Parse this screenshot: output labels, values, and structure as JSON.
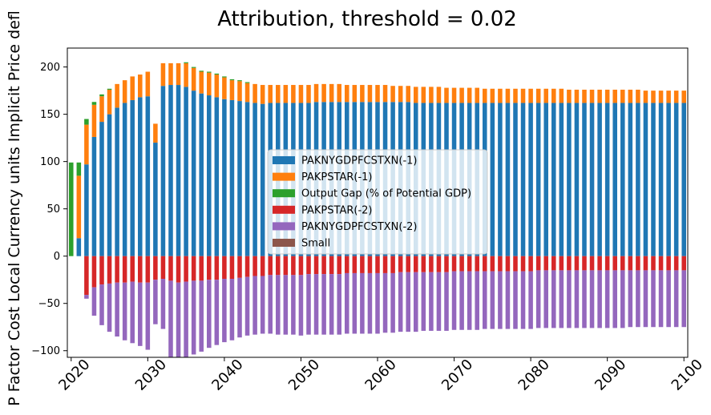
{
  "chart_data": {
    "type": "bar",
    "stacked": true,
    "title": "Attribution, threshold = 0.02",
    "ylabel": "P Factor Cost Local Currency units Implicit Price defl",
    "xlabel": "",
    "ylim": [
      -107,
      220
    ],
    "yticks": [
      -100,
      -50,
      0,
      50,
      100,
      150,
      200
    ],
    "xticks": [
      "2020",
      "2030",
      "2040",
      "2050",
      "2060",
      "2070",
      "2080",
      "2090",
      "2100"
    ],
    "grid": false,
    "legend_position": "center-right",
    "categories": [
      "2020",
      "2021",
      "2022",
      "2023",
      "2024",
      "2025",
      "2026",
      "2027",
      "2028",
      "2029",
      "2030",
      "2031",
      "2032",
      "2033",
      "2034",
      "2035",
      "2036",
      "2037",
      "2038",
      "2039",
      "2040",
      "2041",
      "2042",
      "2043",
      "2044",
      "2045",
      "2046",
      "2047",
      "2048",
      "2049",
      "2050",
      "2051",
      "2052",
      "2053",
      "2054",
      "2055",
      "2056",
      "2057",
      "2058",
      "2059",
      "2060",
      "2061",
      "2062",
      "2063",
      "2064",
      "2065",
      "2066",
      "2067",
      "2068",
      "2069",
      "2070",
      "2071",
      "2072",
      "2073",
      "2074",
      "2075",
      "2076",
      "2077",
      "2078",
      "2079",
      "2080",
      "2081",
      "2082",
      "2083",
      "2084",
      "2085",
      "2086",
      "2087",
      "2088",
      "2089",
      "2090",
      "2091",
      "2092",
      "2093",
      "2094",
      "2095",
      "2096",
      "2097",
      "2098",
      "2099",
      "2100"
    ],
    "series": [
      {
        "name": "PAKNYGDPFCSTXN(-1)",
        "color": "#1f77b4",
        "values": [
          0,
          19,
          97,
          126,
          142,
          150,
          157,
          162,
          165,
          168,
          169,
          120,
          180,
          181,
          181,
          179,
          175,
          172,
          170,
          168,
          166,
          165,
          164,
          163,
          162,
          161,
          162,
          162,
          162,
          162,
          162,
          162,
          163,
          163,
          163,
          163,
          163,
          163,
          163,
          163,
          163,
          163,
          163,
          163,
          163,
          162,
          162,
          162,
          162,
          162,
          162,
          162,
          162,
          162,
          162,
          162,
          162,
          162,
          162,
          162,
          162,
          162,
          162,
          162,
          162,
          162,
          162,
          162,
          162,
          162,
          162,
          162,
          162,
          162,
          162,
          162,
          162,
          162,
          162,
          162,
          162
        ]
      },
      {
        "name": "PAKPSTAR(-1)",
        "color": "#ff7f0e",
        "values": [
          0,
          66,
          42,
          34,
          27,
          26,
          25,
          24,
          25,
          24,
          26,
          20,
          24,
          23,
          23,
          25,
          24,
          23,
          24,
          24,
          23,
          21,
          21,
          20,
          20,
          20,
          19,
          19,
          19,
          19,
          19,
          19,
          19,
          19,
          19,
          19,
          18,
          18,
          18,
          18,
          18,
          18,
          17,
          17,
          17,
          17,
          17,
          17,
          17,
          16,
          16,
          16,
          16,
          16,
          15,
          15,
          15,
          15,
          15,
          15,
          15,
          15,
          15,
          15,
          15,
          14,
          14,
          14,
          14,
          14,
          14,
          14,
          14,
          14,
          14,
          13,
          13,
          13,
          13,
          13,
          13
        ]
      },
      {
        "name": "Output Gap (% of Potential GDP)",
        "color": "#2ca02c",
        "values": [
          99,
          14,
          6,
          3,
          2,
          1,
          0,
          0,
          0,
          0,
          0,
          0,
          0,
          0,
          0,
          1,
          1,
          1,
          1,
          1,
          1,
          1,
          1,
          1,
          0,
          0,
          0,
          0,
          0,
          0,
          0,
          0,
          0,
          0,
          0,
          0,
          0,
          0,
          0,
          0,
          0,
          0,
          0,
          0,
          0,
          0,
          0,
          0,
          0,
          0,
          0,
          0,
          0,
          0,
          0,
          0,
          0,
          0,
          0,
          0,
          0,
          0,
          0,
          0,
          0,
          0,
          0,
          0,
          0,
          0,
          0,
          0,
          0,
          0,
          0,
          0,
          0,
          0,
          0,
          0,
          0
        ]
      },
      {
        "name": "PAKPSTAR(-2)",
        "color": "#d62728",
        "values": [
          0,
          0,
          -41,
          -33,
          -30,
          -29,
          -28,
          -28,
          -27,
          -28,
          -28,
          -25,
          -24,
          -26,
          -28,
          -27,
          -26,
          -26,
          -25,
          -25,
          -24,
          -24,
          -23,
          -22,
          -21,
          -21,
          -20,
          -20,
          -20,
          -20,
          -20,
          -19,
          -19,
          -19,
          -19,
          -19,
          -18,
          -18,
          -18,
          -18,
          -18,
          -18,
          -18,
          -17,
          -17,
          -17,
          -17,
          -17,
          -17,
          -17,
          -16,
          -16,
          -16,
          -16,
          -16,
          -16,
          -16,
          -16,
          -16,
          -16,
          -16,
          -15,
          -15,
          -15,
          -15,
          -15,
          -15,
          -15,
          -15,
          -15,
          -15,
          -15,
          -15,
          -15,
          -15,
          -15,
          -15,
          -15,
          -15,
          -15,
          -15
        ]
      },
      {
        "name": "PAKNYGDPFCSTXN(-2)",
        "color": "#9467bd",
        "values": [
          0,
          0,
          -4,
          -30,
          -43,
          -51,
          -57,
          -61,
          -65,
          -67,
          -71,
          -47,
          -53,
          -81,
          -80,
          -80,
          -78,
          -75,
          -72,
          -69,
          -67,
          -65,
          -63,
          -62,
          -62,
          -61,
          -62,
          -63,
          -63,
          -63,
          -64,
          -64,
          -64,
          -64,
          -64,
          -64,
          -64,
          -64,
          -64,
          -64,
          -64,
          -63,
          -63,
          -63,
          -63,
          -63,
          -62,
          -62,
          -62,
          -62,
          -62,
          -62,
          -62,
          -62,
          -61,
          -61,
          -61,
          -61,
          -61,
          -61,
          -61,
          -61,
          -61,
          -61,
          -61,
          -61,
          -61,
          -61,
          -61,
          -61,
          -61,
          -61,
          -61,
          -60,
          -60,
          -60,
          -60,
          -60,
          -60,
          -60,
          -60
        ]
      },
      {
        "name": "Small",
        "color": "#8c564b",
        "values": [
          0,
          0,
          0,
          0,
          0,
          0,
          0,
          0,
          0,
          0,
          0,
          0,
          0,
          0,
          0,
          0,
          0,
          0,
          0,
          0,
          0,
          0,
          0,
          0,
          0,
          0,
          0,
          0,
          0,
          0,
          0,
          0,
          0,
          0,
          0,
          0,
          0,
          0,
          0,
          0,
          0,
          0,
          0,
          0,
          0,
          0,
          0,
          0,
          0,
          0,
          0,
          0,
          0,
          0,
          0,
          0,
          0,
          0,
          0,
          0,
          0,
          0,
          0,
          0,
          0,
          0,
          0,
          0,
          0,
          0,
          0,
          0,
          0,
          0,
          0,
          0,
          0,
          0,
          0,
          0,
          0
        ]
      }
    ]
  }
}
